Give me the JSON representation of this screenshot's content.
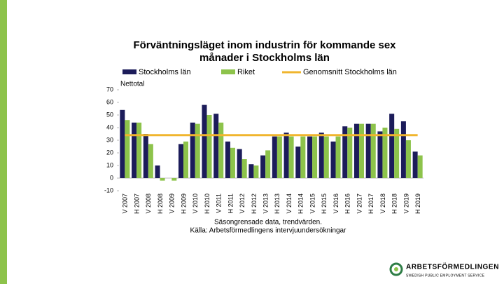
{
  "chart_data": {
    "type": "bar",
    "title": [
      "Förväntningsläget inom industrin för kommande sex",
      "månader i Stockholms län"
    ],
    "y_label": "Nettotal",
    "categories": [
      "V 2007",
      "H 2007",
      "V 2008",
      "H 2008",
      "V 2009",
      "H 2009",
      "V 2010",
      "H 2010",
      "V 2011",
      "H 2011",
      "V 2012",
      "H 2012",
      "V 2013",
      "H 2013",
      "V 2014",
      "H 2014",
      "V 2015",
      "H 2015",
      "V 2016",
      "H 2016",
      "V 2017",
      "H 2017",
      "V 2018",
      "H 2018",
      "V 2019",
      "H 2019"
    ],
    "series": [
      {
        "name": "Stockholms län",
        "color": "#1c1c5a",
        "values": [
          54,
          44,
          35,
          10,
          0,
          27,
          44,
          58,
          51,
          29,
          23,
          11,
          18,
          33,
          36,
          25,
          33,
          36,
          29,
          41,
          43,
          43,
          37,
          51,
          45,
          21
        ]
      },
      {
        "name": "Riket",
        "color": "#8dc34b",
        "values": [
          46,
          44,
          27,
          -2,
          -2,
          29,
          43,
          50,
          44,
          24,
          15,
          10,
          22,
          33,
          33,
          33,
          33,
          33,
          33,
          40,
          43,
          43,
          40,
          39,
          30,
          18
        ]
      }
    ],
    "average": {
      "name": "Genomsnitt Stockholms län",
      "color": "#f0b52e",
      "value": 34
    },
    "ylim": [
      -10,
      70
    ],
    "yticks": [
      -10,
      0,
      10,
      20,
      30,
      40,
      50,
      60,
      70
    ],
    "notes": [
      "Säsongrensade data, trendvärden.",
      "Källa: Arbetsförmedlingens intervjuundersökningar"
    ]
  },
  "logo": {
    "name": "ARBETSFÖRMEDLINGEN",
    "tagline": "SWEDISH PUBLIC EMPLOYMENT SERVICE"
  }
}
